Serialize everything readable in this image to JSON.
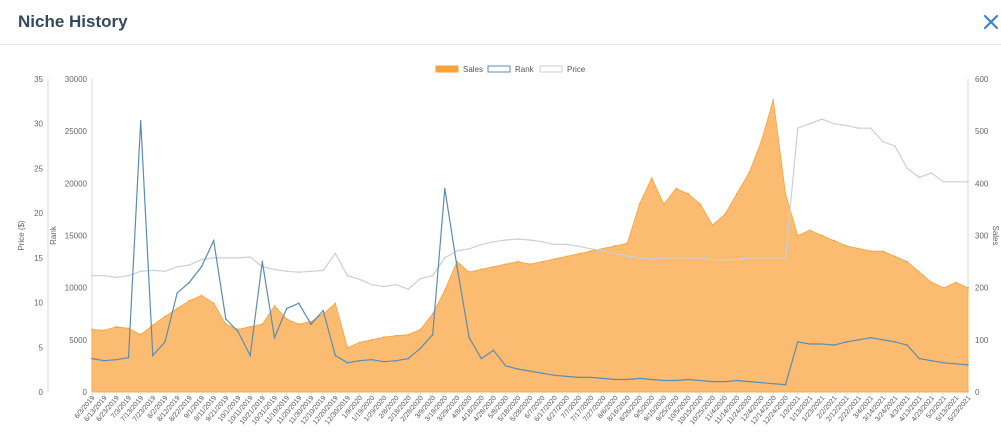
{
  "header": {
    "title": "Niche History",
    "close_icon": "close-icon"
  },
  "colors": {
    "sales": "#f7a23b",
    "sales_fill": "#fbb869",
    "rank": "#5b8db3",
    "price": "#c9cfdb",
    "title": "#34495e",
    "close": "#3a86c8"
  },
  "chart_data": {
    "type": "area",
    "legend": {
      "position": "top-center",
      "entries": [
        "Sales",
        "Rank",
        "Price"
      ]
    },
    "axes": {
      "price": {
        "label": "Price ($)",
        "side": "left-outer",
        "range": [
          0,
          35
        ],
        "ticks": [
          "0",
          "5",
          "10",
          "15",
          "20",
          "25",
          "30",
          "35"
        ]
      },
      "rank": {
        "label": "Rank",
        "side": "left",
        "range": [
          0,
          30000
        ],
        "ticks": [
          "0",
          "5000",
          "10000",
          "15000",
          "20000",
          "25000",
          "30000"
        ]
      },
      "sales": {
        "label": "Sales",
        "side": "right",
        "range": [
          0,
          600
        ],
        "ticks": [
          "0",
          "100",
          "200",
          "300",
          "400",
          "500",
          "600"
        ]
      }
    },
    "x": [
      "6/3/2019",
      "6/13/2019",
      "6/23/2019",
      "7/3/2019",
      "7/13/2019",
      "7/23/2019",
      "8/2/2019",
      "8/12/2019",
      "8/22/2019",
      "9/1/2019",
      "9/11/2019",
      "9/21/2019",
      "10/1/2019",
      "10/11/2019",
      "10/21/2019",
      "10/31/2019",
      "11/10/2019",
      "11/20/2019",
      "11/30/2019",
      "12/10/2019",
      "12/20/2019",
      "12/30/2019",
      "1/9/2020",
      "1/19/2020",
      "1/29/2020",
      "2/8/2020",
      "2/18/2020",
      "2/28/2020",
      "3/9/2020",
      "3/19/2020",
      "3/29/2020",
      "4/8/2020",
      "4/18/2020",
      "4/28/2020",
      "5/8/2020",
      "5/18/2020",
      "5/28/2020",
      "6/7/2020",
      "6/17/2020",
      "6/27/2020",
      "7/7/2020",
      "7/17/2020",
      "7/27/2020",
      "8/6/2020",
      "8/16/2020",
      "8/26/2020",
      "9/5/2020",
      "9/15/2020",
      "9/25/2020",
      "10/5/2020",
      "10/15/2020",
      "10/25/2020",
      "11/4/2020",
      "11/14/2020",
      "11/24/2020",
      "12/4/2020",
      "12/14/2020",
      "12/24/2020",
      "1/3/2021",
      "1/13/2021",
      "1/23/2021",
      "2/2/2021",
      "2/12/2021",
      "2/22/2021",
      "3/4/2021",
      "3/14/2021",
      "3/24/2021",
      "4/3/2021",
      "4/13/2021",
      "4/23/2021",
      "5/3/2021",
      "5/13/2021",
      "5/23/2021"
    ],
    "series": [
      {
        "name": "Sales",
        "axis": "sales",
        "style": "area",
        "values": [
          120,
          118,
          125,
          122,
          110,
          128,
          145,
          160,
          175,
          185,
          170,
          130,
          120,
          125,
          130,
          165,
          140,
          130,
          135,
          150,
          170,
          85,
          95,
          100,
          105,
          108,
          110,
          120,
          150,
          195,
          250,
          230,
          235,
          240,
          245,
          250,
          245,
          250,
          255,
          260,
          265,
          270,
          275,
          280,
          285,
          360,
          410,
          360,
          390,
          380,
          360,
          320,
          340,
          380,
          420,
          480,
          560,
          380,
          300,
          310,
          300,
          290,
          280,
          275,
          270,
          270,
          260,
          250,
          230,
          210,
          200,
          210,
          200
        ]
      },
      {
        "name": "Rank",
        "axis": "rank",
        "style": "line",
        "values": [
          3200,
          3000,
          3100,
          3300,
          26000,
          3500,
          4800,
          9500,
          10500,
          12000,
          14500,
          7000,
          5800,
          3500,
          12500,
          5200,
          8000,
          8500,
          6500,
          7800,
          3500,
          2800,
          3000,
          3100,
          2900,
          3000,
          3200,
          4200,
          5500,
          19500,
          12000,
          5200,
          3200,
          4000,
          2500,
          2200,
          2000,
          1800,
          1600,
          1500,
          1400,
          1400,
          1300,
          1200,
          1200,
          1300,
          1200,
          1100,
          1100,
          1200,
          1100,
          1000,
          1000,
          1100,
          1000,
          900,
          800,
          700,
          4800,
          4600,
          4600,
          4500,
          4800,
          5000,
          5200,
          5000,
          4800,
          4500,
          3200,
          3000,
          2800,
          2700,
          2600
        ]
      },
      {
        "name": "Price",
        "axis": "price",
        "style": "line",
        "values": [
          13.0,
          13.0,
          12.8,
          13.0,
          13.5,
          13.6,
          13.5,
          14.0,
          14.2,
          14.8,
          15.0,
          15.0,
          15.0,
          15.1,
          14.0,
          13.7,
          13.5,
          13.4,
          13.5,
          13.6,
          15.5,
          13.0,
          12.6,
          12.0,
          11.8,
          12.0,
          11.5,
          12.7,
          13.0,
          15.0,
          15.8,
          16.0,
          16.5,
          16.8,
          17.0,
          17.1,
          17.0,
          16.8,
          16.5,
          16.5,
          16.3,
          16.0,
          15.8,
          15.5,
          15.2,
          15.0,
          14.9,
          15.0,
          15.0,
          15.0,
          15.0,
          14.8,
          14.8,
          14.8,
          15.0,
          15.0,
          15.0,
          15.0,
          29.5,
          30.0,
          30.5,
          30.0,
          29.8,
          29.5,
          29.5,
          28.0,
          27.5,
          25.0,
          24.0,
          24.5,
          23.5,
          23.5,
          23.5
        ]
      }
    ]
  }
}
